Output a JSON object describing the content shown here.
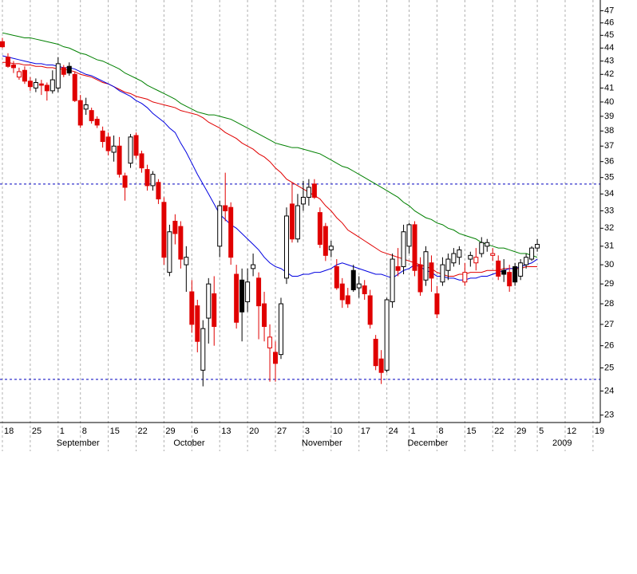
{
  "chart_data": {
    "type": "candlestick",
    "log_scale": true,
    "grid": true,
    "up_color": "#000000",
    "down_color": "#e00000",
    "ylim": [
      22.7,
      47.9
    ],
    "yticks": [
      23,
      24,
      25,
      26,
      27,
      28,
      29,
      30,
      31,
      32,
      33,
      34,
      35,
      36,
      37,
      38,
      39,
      40,
      41,
      42,
      43,
      44,
      45,
      46,
      47
    ],
    "categories": [
      "18",
      null,
      null,
      null,
      null,
      "25",
      null,
      null,
      null,
      null,
      "1",
      null,
      null,
      null,
      "8",
      null,
      null,
      null,
      null,
      "15",
      null,
      null,
      null,
      null,
      "22",
      null,
      null,
      null,
      null,
      "29",
      null,
      null,
      null,
      null,
      "6",
      null,
      null,
      null,
      null,
      "13",
      null,
      null,
      null,
      null,
      "20",
      null,
      null,
      null,
      null,
      "27",
      null,
      null,
      null,
      null,
      "3",
      null,
      null,
      null,
      null,
      "10",
      null,
      null,
      null,
      null,
      "17",
      null,
      null,
      null,
      null,
      "24",
      null,
      null,
      null,
      "1",
      null,
      null,
      null,
      null,
      "8",
      null,
      null,
      null,
      null,
      "15",
      null,
      null,
      null,
      null,
      "22",
      null,
      null,
      null,
      "29",
      null,
      null,
      null,
      "5",
      null,
      null,
      null,
      null,
      "12",
      null,
      null,
      null,
      null,
      "19",
      null
    ],
    "month_labels": [
      null,
      null,
      null,
      null,
      null,
      null,
      null,
      null,
      null,
      null,
      "September",
      null,
      null,
      null,
      null,
      null,
      null,
      null,
      null,
      null,
      null,
      null,
      null,
      null,
      null,
      null,
      null,
      null,
      null,
      null,
      null,
      "October",
      null,
      null,
      null,
      null,
      null,
      null,
      null,
      null,
      null,
      null,
      null,
      null,
      null,
      null,
      null,
      null,
      null,
      null,
      null,
      null,
      null,
      null,
      "November",
      null,
      null,
      null,
      null,
      null,
      null,
      null,
      null,
      null,
      null,
      null,
      null,
      null,
      null,
      null,
      null,
      null,
      null,
      "December",
      null,
      null,
      null,
      null,
      null,
      null,
      null,
      null,
      null,
      null,
      null,
      null,
      null,
      null,
      null,
      null,
      null,
      null,
      null,
      null,
      null,
      null,
      null,
      null,
      null,
      "2009",
      null,
      null,
      null,
      null,
      null,
      null,
      null,
      null,
      null,
      null,
      null,
      null
    ],
    "open": [
      44.5,
      43.3,
      42.7,
      41.8,
      42.3,
      41.5,
      41.0,
      41.3,
      41.2,
      40.8,
      41.0,
      42.5,
      42.6,
      42.0,
      40.1,
      39.5,
      39.4,
      38.8,
      38.0,
      37.6,
      36.6,
      37.0,
      35.1,
      35.9,
      37.7,
      36.5,
      35.5,
      34.5,
      34.7,
      33.5,
      29.6,
      32.4,
      32.1,
      30.0,
      28.6,
      27.9,
      24.9,
      27.3,
      28.5,
      31.0,
      33.3,
      33.2,
      29.5,
      29.2,
      28.1,
      29.8,
      29.3,
      28.0,
      25.9,
      25.7,
      25.6,
      29.3,
      33.4,
      31.4,
      33.4,
      33.8,
      34.6,
      32.9,
      32.1,
      30.8,
      29.9,
      29.0,
      28.4,
      29.7,
      28.8,
      28.9,
      28.4,
      26.3,
      25.4,
      24.9,
      28.1,
      29.9,
      29.9,
      31.0,
      32.2,
      30.0,
      29.2,
      30.1,
      28.5,
      29.1,
      29.7,
      30.1,
      30.4,
      29.1,
      30.3,
      30.1,
      30.6,
      31.0,
      30.5,
      30.2,
      29.7,
      29.6,
      29.9,
      29.4,
      30.0,
      30.3,
      30.9,
      null,
      null,
      null,
      null,
      null,
      null,
      null,
      null,
      null,
      null,
      null
    ],
    "high": [
      44.8,
      43.6,
      43.0,
      42.5,
      42.6,
      41.8,
      41.7,
      41.6,
      41.4,
      42.3,
      43.3,
      42.7,
      42.9,
      42.2,
      40.5,
      40.3,
      39.6,
      39.0,
      38.3,
      37.9,
      37.7,
      37.6,
      35.3,
      37.8,
      37.9,
      36.7,
      35.8,
      35.4,
      34.9,
      33.8,
      32.2,
      32.8,
      32.4,
      31.0,
      29.2,
      28.2,
      27.2,
      29.3,
      29.4,
      33.6,
      35.3,
      33.5,
      30.0,
      29.8,
      29.8,
      30.6,
      29.6,
      28.6,
      27.0,
      26.2,
      28.3,
      33.2,
      34.7,
      34.0,
      34.8,
      34.9,
      34.9,
      33.2,
      32.3,
      31.3,
      30.3,
      29.3,
      28.8,
      30.0,
      29.4,
      29.2,
      28.7,
      26.5,
      25.8,
      28.3,
      30.6,
      30.9,
      32.2,
      32.3,
      32.4,
      30.4,
      31.0,
      30.5,
      28.9,
      30.4,
      30.6,
      30.9,
      31.0,
      30.1,
      30.7,
      30.9,
      31.5,
      31.4,
      30.9,
      30.5,
      30.3,
      30.0,
      30.1,
      30.3,
      30.6,
      31.0,
      31.4,
      null,
      null,
      null,
      null,
      null,
      null,
      null,
      null,
      null,
      null,
      null
    ],
    "low": [
      44.0,
      42.5,
      42.1,
      41.6,
      41.3,
      40.8,
      40.7,
      40.5,
      40.1,
      40.6,
      40.7,
      41.8,
      41.9,
      40.0,
      38.2,
      39.1,
      38.5,
      38.2,
      36.9,
      36.4,
      36.0,
      35.0,
      33.6,
      35.6,
      36.2,
      35.3,
      34.2,
      34.2,
      33.4,
      30.0,
      29.4,
      31.1,
      29.8,
      28.6,
      26.6,
      25.7,
      24.2,
      26.1,
      26.0,
      30.4,
      32.4,
      30.0,
      26.8,
      26.2,
      27.6,
      29.4,
      26.3,
      26.2,
      24.4,
      24.4,
      25.4,
      29.0,
      31.2,
      31.2,
      33.0,
      33.3,
      33.7,
      30.9,
      30.2,
      30.4,
      28.7,
      27.8,
      27.8,
      28.6,
      28.3,
      28.2,
      26.8,
      24.9,
      24.3,
      24.8,
      27.8,
      29.4,
      29.5,
      30.6,
      29.4,
      28.4,
      28.9,
      28.6,
      27.3,
      28.9,
      29.2,
      29.9,
      30.0,
      28.9,
      29.9,
      29.7,
      30.4,
      30.7,
      30.2,
      29.2,
      29.1,
      28.6,
      28.9,
      29.2,
      29.8,
      30.2,
      30.7,
      null,
      null,
      null,
      null,
      null,
      null,
      null,
      null,
      null,
      null,
      null
    ],
    "close": [
      44.1,
      42.6,
      42.5,
      42.2,
      41.5,
      41.1,
      41.4,
      41.2,
      40.8,
      41.6,
      42.8,
      42.0,
      42.1,
      40.1,
      38.4,
      39.8,
      38.7,
      38.4,
      37.3,
      36.7,
      37.0,
      35.2,
      34.4,
      37.6,
      36.4,
      35.6,
      34.5,
      35.2,
      33.7,
      30.4,
      31.8,
      31.7,
      30.3,
      30.4,
      27.0,
      26.2,
      26.8,
      29.0,
      26.9,
      33.3,
      33.0,
      30.4,
      27.1,
      27.6,
      29.1,
      30.0,
      27.9,
      26.9,
      26.4,
      25.2,
      28.0,
      32.7,
      31.4,
      33.3,
      33.8,
      34.4,
      33.8,
      31.1,
      30.5,
      31.0,
      28.8,
      28.2,
      28.0,
      28.7,
      29.0,
      28.5,
      27.0,
      25.1,
      24.8,
      28.2,
      30.3,
      29.7,
      31.8,
      32.2,
      29.7,
      28.6,
      30.7,
      29.3,
      27.5,
      30.0,
      30.3,
      30.6,
      30.8,
      29.6,
      30.5,
      30.4,
      31.2,
      31.2,
      30.6,
      29.4,
      29.5,
      28.9,
      29.1,
      30.1,
      30.4,
      30.9,
      31.1,
      null,
      null,
      null,
      null,
      null,
      null,
      null,
      null,
      null,
      null,
      null
    ],
    "series": [
      {
        "color": "#008000",
        "values": [
          45.2,
          45.1,
          45.0,
          44.9,
          44.8,
          44.8,
          44.7,
          44.6,
          44.5,
          44.4,
          44.3,
          44.1,
          44.0,
          43.8,
          43.6,
          43.5,
          43.3,
          43.1,
          43.0,
          42.8,
          42.6,
          42.4,
          42.1,
          41.9,
          41.7,
          41.5,
          41.2,
          41.0,
          40.8,
          40.6,
          40.4,
          40.2,
          39.9,
          39.7,
          39.5,
          39.3,
          39.2,
          39.1,
          39.1,
          39.0,
          38.9,
          38.8,
          38.6,
          38.4,
          38.2,
          38.0,
          37.8,
          37.6,
          37.4,
          37.2,
          37.1,
          37.0,
          36.9,
          36.9,
          36.8,
          36.7,
          36.6,
          36.5,
          36.3,
          36.1,
          35.9,
          35.7,
          35.6,
          35.4,
          35.2,
          35.0,
          34.8,
          34.6,
          34.4,
          34.2,
          34.0,
          33.8,
          33.5,
          33.3,
          33.0,
          32.8,
          32.6,
          32.5,
          32.3,
          32.2,
          32.0,
          31.9,
          31.7,
          31.6,
          31.5,
          31.4,
          31.2,
          31.1,
          31.0,
          30.9,
          30.9,
          30.8,
          30.7,
          30.6,
          30.6,
          30.5,
          30.4,
          null,
          null,
          null,
          null,
          null,
          null,
          null,
          null,
          null,
          null,
          null
        ]
      },
      {
        "color": "#e00000",
        "values": [
          42.9,
          42.9,
          42.8,
          42.8,
          42.7,
          42.7,
          42.6,
          42.6,
          42.5,
          42.5,
          42.4,
          42.4,
          42.3,
          42.2,
          42.0,
          41.9,
          41.8,
          41.6,
          41.4,
          41.3,
          41.1,
          40.9,
          40.7,
          40.6,
          40.4,
          40.3,
          40.2,
          40.0,
          39.9,
          39.8,
          39.7,
          39.6,
          39.4,
          39.3,
          39.2,
          39.1,
          38.9,
          38.6,
          38.4,
          38.2,
          37.9,
          37.7,
          37.5,
          37.2,
          37.0,
          36.8,
          36.5,
          36.3,
          36.0,
          35.6,
          35.3,
          34.9,
          34.7,
          34.5,
          34.3,
          34.1,
          33.9,
          33.7,
          33.3,
          33.0,
          32.6,
          32.3,
          31.9,
          31.7,
          31.5,
          31.3,
          31.1,
          30.9,
          30.7,
          30.6,
          30.5,
          30.4,
          30.3,
          30.2,
          30.1,
          30.0,
          29.9,
          29.8,
          29.6,
          29.5,
          29.4,
          29.4,
          29.5,
          29.5,
          29.6,
          29.6,
          29.6,
          29.7,
          29.7,
          29.7,
          29.8,
          29.8,
          29.8,
          29.8,
          29.9,
          29.9,
          29.9,
          null,
          null,
          null,
          null,
          null,
          null,
          null,
          null,
          null,
          null,
          null
        ]
      },
      {
        "color": "#0000e0",
        "values": [
          43.4,
          43.3,
          43.2,
          43.1,
          43.0,
          42.9,
          42.8,
          42.8,
          42.7,
          42.7,
          42.6,
          42.5,
          42.5,
          42.4,
          42.2,
          42.0,
          41.9,
          41.7,
          41.5,
          41.3,
          41.1,
          40.8,
          40.6,
          40.4,
          40.1,
          39.9,
          39.6,
          39.2,
          38.9,
          38.6,
          38.2,
          37.9,
          37.2,
          36.6,
          35.9,
          35.2,
          34.6,
          34.0,
          33.4,
          32.8,
          32.5,
          32.2,
          32.0,
          31.7,
          31.4,
          31.1,
          30.8,
          30.4,
          30.1,
          29.9,
          29.8,
          29.6,
          29.4,
          29.4,
          29.5,
          29.5,
          29.6,
          29.6,
          29.7,
          29.8,
          30.0,
          30.1,
          30.0,
          29.9,
          29.8,
          29.7,
          29.6,
          29.5,
          29.5,
          29.4,
          29.3,
          29.5,
          29.7,
          29.8,
          30.0,
          29.9,
          29.7,
          29.6,
          29.4,
          29.4,
          29.3,
          29.3,
          29.2,
          29.2,
          29.3,
          29.3,
          29.4,
          29.4,
          29.5,
          29.6,
          29.7,
          29.8,
          29.8,
          29.9,
          30.0,
          30.1,
          30.3,
          null,
          null,
          null,
          null,
          null,
          null,
          null,
          null,
          null,
          null,
          null
        ]
      }
    ],
    "hlines": {
      "color": "#0000c0",
      "values": [
        34.6,
        24.5
      ]
    }
  }
}
